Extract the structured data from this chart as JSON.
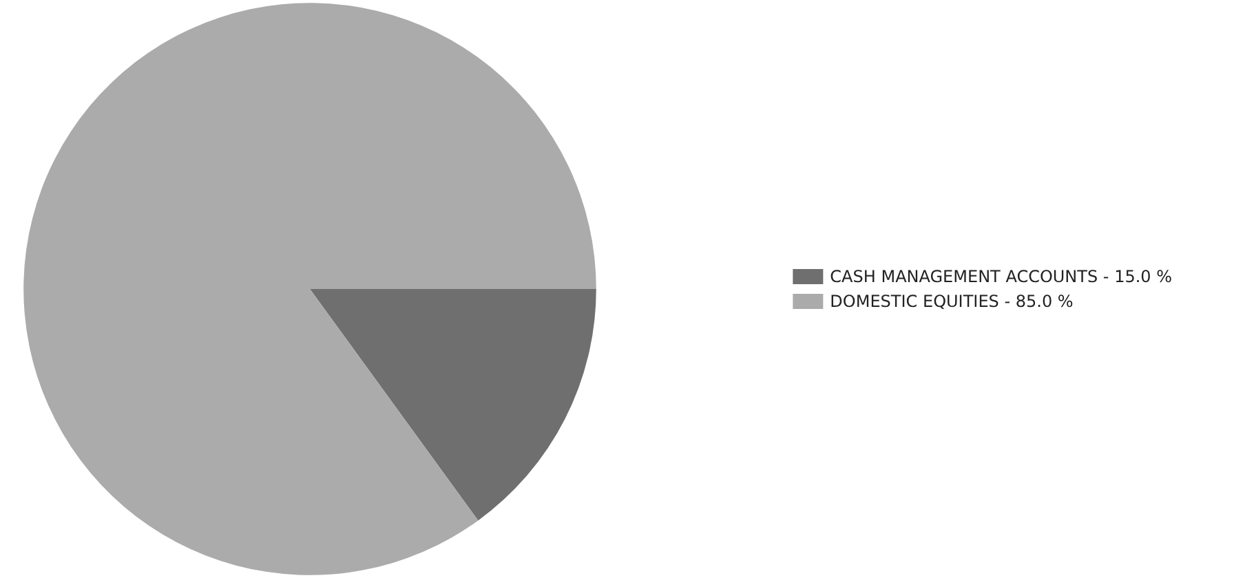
{
  "chart_data": {
    "type": "pie",
    "categories": [
      "CASH MANAGEMENT ACCOUNTS - 15.0 %",
      "DOMESTIC EQUITIES - 85.0 %"
    ],
    "values": [
      15,
      85
    ],
    "colors": [
      "#6f6f6f",
      "#ababab"
    ],
    "legend": "right"
  }
}
